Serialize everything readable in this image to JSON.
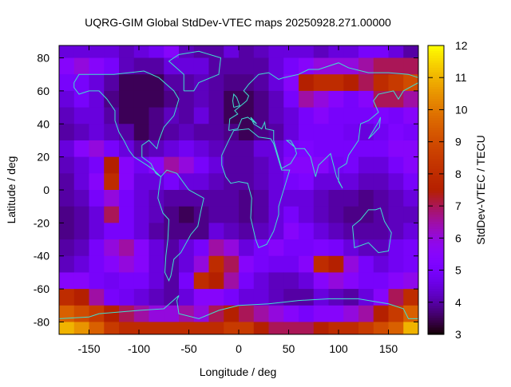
{
  "chart_data": {
    "type": "heatmap",
    "title": "UQRG-GIM Global StdDev-VTEC maps 20250928.271.00000",
    "xlabel": "Longitude / deg",
    "ylabel": "Latitude / deg",
    "colorbar_label": "StdDev-VTEC / TECU",
    "xlim": [
      -180,
      180
    ],
    "ylim": [
      -87.5,
      87.5
    ],
    "xticks": [
      -150,
      -100,
      -50,
      0,
      50,
      100,
      150
    ],
    "yticks": [
      80,
      60,
      40,
      20,
      0,
      -20,
      -40,
      -60,
      -80
    ],
    "cbrange": [
      3,
      12
    ],
    "cbticks": [
      3,
      4,
      5,
      6,
      7,
      8,
      9,
      10,
      11,
      12
    ],
    "palette": "black-purple-red-orange-yellow",
    "coastline_color": "#40e0d0",
    "lon_centers": [
      -172.5,
      -157.5,
      -142.5,
      -127.5,
      -112.5,
      -97.5,
      -82.5,
      -67.5,
      -52.5,
      -37.5,
      -22.5,
      -7.5,
      7.5,
      22.5,
      37.5,
      52.5,
      67.5,
      82.5,
      97.5,
      112.5,
      127.5,
      142.5,
      157.5,
      172.5
    ],
    "lat_centers": [
      85,
      75,
      65,
      55,
      45,
      35,
      25,
      15,
      5,
      -5,
      -15,
      -25,
      -35,
      -45,
      -55,
      -65,
      -75,
      -85
    ],
    "values": [
      [
        4.5,
        4.5,
        4.5,
        4.5,
        4.2,
        4.5,
        4.8,
        5.5,
        4.2,
        4.0,
        4.0,
        4.5,
        4.0,
        4.2,
        4.5,
        4.5,
        4.5,
        4.2,
        4.5,
        4.5,
        5.0,
        5.0,
        4.5,
        4.0
      ],
      [
        5.5,
        6.0,
        5.5,
        5.0,
        4.2,
        4.0,
        4.0,
        4.5,
        4.5,
        4.5,
        4.0,
        4.0,
        4.0,
        4.0,
        4.5,
        5.0,
        5.5,
        6.0,
        6.0,
        6.0,
        6.5,
        7.0,
        7.0,
        7.0
      ],
      [
        5.0,
        5.0,
        4.5,
        4.0,
        3.5,
        3.5,
        3.5,
        4.0,
        4.0,
        4.2,
        4.0,
        3.8,
        3.8,
        4.0,
        4.5,
        5.5,
        7.5,
        8.0,
        8.0,
        7.5,
        7.0,
        8.0,
        8.5,
        9.0
      ],
      [
        4.5,
        5.0,
        4.5,
        3.8,
        3.5,
        3.5,
        3.5,
        3.8,
        4.0,
        4.2,
        4.0,
        3.5,
        3.5,
        3.8,
        4.2,
        5.0,
        6.5,
        6.0,
        5.5,
        5.0,
        5.5,
        7.0,
        7.0,
        6.5
      ],
      [
        4.2,
        4.5,
        4.5,
        4.0,
        3.5,
        3.5,
        3.8,
        4.2,
        4.0,
        4.5,
        4.0,
        3.5,
        3.5,
        3.8,
        4.2,
        4.5,
        5.0,
        5.5,
        5.0,
        5.0,
        5.0,
        5.2,
        5.0,
        5.5
      ],
      [
        4.0,
        4.2,
        4.5,
        4.2,
        4.0,
        3.5,
        3.8,
        4.0,
        4.2,
        4.0,
        4.0,
        3.8,
        3.5,
        3.8,
        4.0,
        4.5,
        5.0,
        5.0,
        5.0,
        4.8,
        4.5,
        4.8,
        5.2,
        5.0
      ],
      [
        4.5,
        5.5,
        6.0,
        5.0,
        4.5,
        4.0,
        4.2,
        4.5,
        4.8,
        4.5,
        4.2,
        4.0,
        4.0,
        4.5,
        4.5,
        5.0,
        5.2,
        5.0,
        5.0,
        5.0,
        5.0,
        5.0,
        5.5,
        5.5
      ],
      [
        4.2,
        4.5,
        5.0,
        7.5,
        5.5,
        4.8,
        5.5,
        6.5,
        6.0,
        5.0,
        4.5,
        4.0,
        4.0,
        4.2,
        4.5,
        5.5,
        5.5,
        5.5,
        4.8,
        5.0,
        4.5,
        4.5,
        5.0,
        5.5
      ],
      [
        4.0,
        4.5,
        5.5,
        8.0,
        5.5,
        4.5,
        4.5,
        5.0,
        4.5,
        4.5,
        4.2,
        4.0,
        4.0,
        4.2,
        4.5,
        5.0,
        5.2,
        4.5,
        4.5,
        4.5,
        4.2,
        4.2,
        4.5,
        5.0
      ],
      [
        4.0,
        4.2,
        5.0,
        6.0,
        5.0,
        4.5,
        4.2,
        4.0,
        4.0,
        4.0,
        4.0,
        4.0,
        3.8,
        4.0,
        4.5,
        4.5,
        4.5,
        4.2,
        4.0,
        4.0,
        3.8,
        4.0,
        4.2,
        4.5
      ],
      [
        3.8,
        4.0,
        4.5,
        7.0,
        5.0,
        4.5,
        4.2,
        3.8,
        3.5,
        3.8,
        4.0,
        4.0,
        3.8,
        4.0,
        4.5,
        5.0,
        4.5,
        4.2,
        4.0,
        3.8,
        3.8,
        4.0,
        4.2,
        4.2
      ],
      [
        3.8,
        4.0,
        4.5,
        5.0,
        5.0,
        4.5,
        4.0,
        3.8,
        3.8,
        3.8,
        4.5,
        4.2,
        4.0,
        4.2,
        4.5,
        5.5,
        5.0,
        4.5,
        4.2,
        4.0,
        4.0,
        4.0,
        4.2,
        4.5
      ],
      [
        4.0,
        4.2,
        5.0,
        6.0,
        6.5,
        5.5,
        4.5,
        4.0,
        4.5,
        5.0,
        6.5,
        6.0,
        4.5,
        5.0,
        5.5,
        5.0,
        5.0,
        5.2,
        5.0,
        4.5,
        4.2,
        4.2,
        4.8,
        5.0
      ],
      [
        4.2,
        4.5,
        5.0,
        5.5,
        6.0,
        5.5,
        4.5,
        4.0,
        4.5,
        6.0,
        8.0,
        7.0,
        5.5,
        5.0,
        4.8,
        4.8,
        5.5,
        8.0,
        7.5,
        6.0,
        5.0,
        4.5,
        4.8,
        5.0
      ],
      [
        5.5,
        5.5,
        5.0,
        4.8,
        5.0,
        5.0,
        4.5,
        4.0,
        5.0,
        8.0,
        7.5,
        6.5,
        5.0,
        4.5,
        4.2,
        4.2,
        4.5,
        5.5,
        6.0,
        5.5,
        5.0,
        5.0,
        5.5,
        5.8
      ],
      [
        8.0,
        7.5,
        6.5,
        5.0,
        4.8,
        4.5,
        4.2,
        4.0,
        4.5,
        5.5,
        5.5,
        5.0,
        4.5,
        4.5,
        4.2,
        4.0,
        4.0,
        4.5,
        4.2,
        4.0,
        4.5,
        5.5,
        7.0,
        8.0
      ],
      [
        9.5,
        9.0,
        8.5,
        7.5,
        7.0,
        6.5,
        6.0,
        6.0,
        6.5,
        6.0,
        7.0,
        7.5,
        7.0,
        6.5,
        6.0,
        5.5,
        5.0,
        5.5,
        5.5,
        6.0,
        6.5,
        7.5,
        8.5,
        9.5
      ],
      [
        11.0,
        10.5,
        9.5,
        8.5,
        8.0,
        8.0,
        8.0,
        8.0,
        8.0,
        8.0,
        8.0,
        8.5,
        8.5,
        7.5,
        7.0,
        7.0,
        7.0,
        7.5,
        8.0,
        8.0,
        8.5,
        9.0,
        9.5,
        11.0
      ]
    ],
    "coastlines": [
      [
        [
          -165,
          65
        ],
        [
          -160,
          70
        ],
        [
          -140,
          70
        ],
        [
          -125,
          70
        ],
        [
          -95,
          72
        ],
        [
          -80,
          68
        ],
        [
          -65,
          60
        ],
        [
          -60,
          55
        ],
        [
          -65,
          45
        ],
        [
          -75,
          38
        ],
        [
          -80,
          30
        ],
        [
          -82,
          25
        ],
        [
          -90,
          30
        ],
        [
          -97,
          27
        ],
        [
          -97,
          20
        ],
        [
          -88,
          16
        ],
        [
          -83,
          10
        ],
        [
          -78,
          8
        ],
        [
          -85,
          12
        ],
        [
          -92,
          15
        ],
        [
          -105,
          20
        ],
        [
          -110,
          24
        ],
        [
          -115,
          30
        ],
        [
          -120,
          35
        ],
        [
          -124,
          42
        ],
        [
          -124,
          48
        ],
        [
          -132,
          55
        ],
        [
          -140,
          60
        ],
        [
          -150,
          60
        ],
        [
          -160,
          58
        ],
        [
          -165,
          62
        ],
        [
          -165,
          65
        ]
      ],
      [
        [
          -78,
          8
        ],
        [
          -72,
          12
        ],
        [
          -62,
          10
        ],
        [
          -50,
          0
        ],
        [
          -35,
          -5
        ],
        [
          -38,
          -13
        ],
        [
          -41,
          -22
        ],
        [
          -48,
          -27
        ],
        [
          -58,
          -38
        ],
        [
          -65,
          -42
        ],
        [
          -68,
          -52
        ],
        [
          -70,
          -55
        ],
        [
          -74,
          -50
        ],
        [
          -73,
          -40
        ],
        [
          -71,
          -30
        ],
        [
          -70,
          -18
        ],
        [
          -76,
          -14
        ],
        [
          -81,
          -5
        ],
        [
          -80,
          0
        ],
        [
          -78,
          8
        ]
      ],
      [
        [
          -17,
          15
        ],
        [
          -17,
          21
        ],
        [
          -10,
          30
        ],
        [
          -5,
          36
        ],
        [
          10,
          37
        ],
        [
          20,
          32
        ],
        [
          32,
          31
        ],
        [
          35,
          28
        ],
        [
          43,
          12
        ],
        [
          51,
          12
        ],
        [
          45,
          0
        ],
        [
          40,
          -10
        ],
        [
          40,
          -15
        ],
        [
          35,
          -25
        ],
        [
          28,
          -33
        ],
        [
          20,
          -35
        ],
        [
          17,
          -30
        ],
        [
          12,
          -17
        ],
        [
          13,
          -5
        ],
        [
          9,
          4
        ],
        [
          0,
          5
        ],
        [
          -8,
          4
        ],
        [
          -13,
          8
        ],
        [
          -17,
          15
        ]
      ],
      [
        [
          -10,
          36
        ],
        [
          -9,
          43
        ],
        [
          -1,
          46
        ],
        [
          -4,
          48
        ],
        [
          2,
          51
        ],
        [
          8,
          54
        ],
        [
          10,
          57
        ],
        [
          5,
          60
        ],
        [
          10,
          64
        ],
        [
          20,
          70
        ],
        [
          30,
          71
        ],
        [
          40,
          67
        ],
        [
          45,
          68
        ],
        [
          60,
          70
        ],
        [
          70,
          73
        ],
        [
          80,
          73
        ],
        [
          100,
          77
        ],
        [
          110,
          74
        ],
        [
          130,
          71
        ],
        [
          150,
          71
        ],
        [
          170,
          70
        ],
        [
          180,
          68
        ],
        [
          180,
          65
        ],
        [
          165,
          60
        ],
        [
          160,
          55
        ],
        [
          155,
          60
        ],
        [
          140,
          58
        ],
        [
          135,
          54
        ],
        [
          140,
          47
        ],
        [
          130,
          42
        ],
        [
          122,
          40
        ],
        [
          120,
          30
        ],
        [
          110,
          21
        ],
        [
          108,
          16
        ],
        [
          100,
          13
        ],
        [
          100,
          5
        ],
        [
          104,
          1
        ],
        [
          98,
          8
        ],
        [
          92,
          22
        ],
        [
          80,
          15
        ],
        [
          77,
          8
        ],
        [
          72,
          20
        ],
        [
          66,
          25
        ],
        [
          57,
          25
        ],
        [
          52,
          30
        ],
        [
          48,
          30
        ],
        [
          56,
          26
        ],
        [
          58,
          22
        ],
        [
          52,
          16
        ],
        [
          43,
          13
        ],
        [
          35,
          30
        ],
        [
          35,
          36
        ],
        [
          27,
          37
        ],
        [
          26,
          41
        ],
        [
          23,
          37
        ],
        [
          15,
          40
        ],
        [
          12,
          44
        ],
        [
          18,
          40
        ],
        [
          9,
          44
        ],
        [
          3,
          43
        ],
        [
          -1,
          37
        ],
        [
          -10,
          36
        ]
      ],
      [
        [
          -55,
          60
        ],
        [
          -45,
          60
        ],
        [
          -40,
          65
        ],
        [
          -20,
          70
        ],
        [
          -18,
          80
        ],
        [
          -40,
          84
        ],
        [
          -60,
          82
        ],
        [
          -70,
          78
        ],
        [
          -55,
          70
        ],
        [
          -55,
          60
        ]
      ],
      [
        [
          114,
          -22
        ],
        [
          122,
          -18
        ],
        [
          130,
          -12
        ],
        [
          137,
          -12
        ],
        [
          142,
          -11
        ],
        [
          146,
          -19
        ],
        [
          153,
          -26
        ],
        [
          150,
          -37
        ],
        [
          140,
          -38
        ],
        [
          135,
          -35
        ],
        [
          130,
          -32
        ],
        [
          116,
          -35
        ],
        [
          114,
          -22
        ]
      ],
      [
        [
          -180,
          -78
        ],
        [
          -150,
          -77
        ],
        [
          -140,
          -75
        ],
        [
          -100,
          -73
        ],
        [
          -75,
          -72
        ],
        [
          -60,
          -64
        ],
        [
          -62,
          -67
        ],
        [
          -60,
          -75
        ],
        [
          -40,
          -78
        ],
        [
          -20,
          -73
        ],
        [
          0,
          -70
        ],
        [
          30,
          -69
        ],
        [
          60,
          -67
        ],
        [
          90,
          -66
        ],
        [
          120,
          -66
        ],
        [
          150,
          -69
        ],
        [
          165,
          -72
        ],
        [
          170,
          -78
        ],
        [
          180,
          -78
        ]
      ],
      [
        [
          -5,
          50
        ],
        [
          1,
          51
        ],
        [
          -2,
          56
        ],
        [
          -5,
          58
        ],
        [
          -6,
          54
        ],
        [
          -5,
          50
        ]
      ],
      [
        [
          130,
          31
        ],
        [
          135,
          34
        ],
        [
          141,
          38
        ],
        [
          142,
          44
        ],
        [
          140,
          41
        ],
        [
          133,
          34
        ],
        [
          130,
          31
        ]
      ]
    ]
  }
}
